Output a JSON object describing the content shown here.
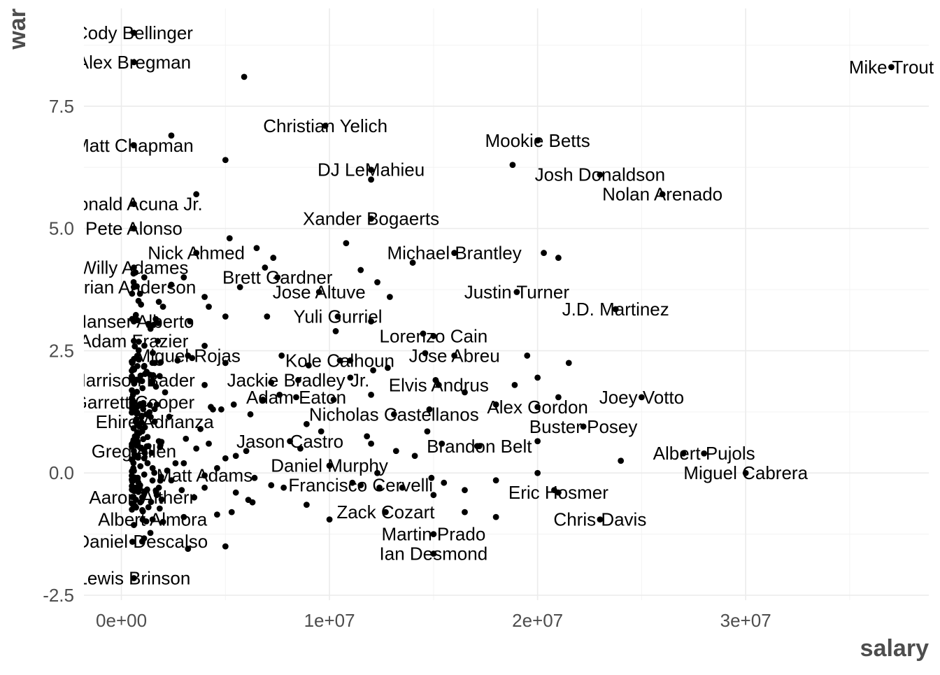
{
  "chart_data": {
    "type": "scatter",
    "xlabel": "salary",
    "ylabel": "war",
    "xlim": [
      -1800000,
      38800000
    ],
    "ylim": [
      -2.6,
      9.5
    ],
    "x_ticks": [
      0,
      10000000,
      20000000,
      30000000
    ],
    "x_tick_labels": [
      "0e+00",
      "1e+07",
      "2e+07",
      "3e+07"
    ],
    "y_ticks": [
      -2.5,
      0,
      2.5,
      5,
      7.5
    ],
    "y_tick_labels": [
      "-2.5",
      "0.0",
      "2.5",
      "5.0",
      "7.5"
    ],
    "grid": true,
    "point_color": "#000000",
    "labeled_points": [
      {
        "label": "Cody Bellinger",
        "x": 600000,
        "y": 9.0
      },
      {
        "label": "Alex Bregman",
        "x": 600000,
        "y": 8.4
      },
      {
        "label": "Mike Trout",
        "x": 37000000,
        "y": 8.3
      },
      {
        "label": "Christian Yelich",
        "x": 9800000,
        "y": 7.1
      },
      {
        "label": "Mookie Betts",
        "x": 20000000,
        "y": 6.8
      },
      {
        "label": "Matt Chapman",
        "x": 600000,
        "y": 6.7
      },
      {
        "label": "DJ LeMahieu",
        "x": 12000000,
        "y": 6.2
      },
      {
        "label": "Josh Donaldson",
        "x": 23000000,
        "y": 6.1
      },
      {
        "label": "Nolan Arenado",
        "x": 26000000,
        "y": 5.7
      },
      {
        "label": "Ronald Acuna Jr.",
        "x": 600000,
        "y": 5.5
      },
      {
        "label": "Xander Bogaerts",
        "x": 12000000,
        "y": 5.2
      },
      {
        "label": "Pete Alonso",
        "x": 600000,
        "y": 5.0
      },
      {
        "label": "Michael Brantley",
        "x": 16000000,
        "y": 4.5
      },
      {
        "label": "Nick Ahmed",
        "x": 3600000,
        "y": 4.5
      },
      {
        "label": "Willy Adames",
        "x": 600000,
        "y": 4.2
      },
      {
        "label": "Brett Gardner",
        "x": 7500000,
        "y": 4.0
      },
      {
        "label": "Brian Anderson",
        "x": 600000,
        "y": 3.8
      },
      {
        "label": "Jose Altuve",
        "x": 9500000,
        "y": 3.7
      },
      {
        "label": "Justin Turner",
        "x": 19000000,
        "y": 3.7
      },
      {
        "label": "J.D. Martinez",
        "x": 23750000,
        "y": 3.35
      },
      {
        "label": "Yuli Gurriel",
        "x": 10400000,
        "y": 3.2
      },
      {
        "label": "Hanser Alberto",
        "x": 600000,
        "y": 3.1
      },
      {
        "label": "Lorenzo Cain",
        "x": 15000000,
        "y": 2.8
      },
      {
        "label": "Adam Frazier",
        "x": 600000,
        "y": 2.7
      },
      {
        "label": "Miguel Rojas",
        "x": 3200000,
        "y": 2.4
      },
      {
        "label": "Jose Abreu",
        "x": 16000000,
        "y": 2.4
      },
      {
        "label": "Kole Calhoun",
        "x": 10500000,
        "y": 2.3
      },
      {
        "label": "Harrison Bader",
        "x": 600000,
        "y": 1.9
      },
      {
        "label": "Jackie Bradley Jr.",
        "x": 8500000,
        "y": 1.9
      },
      {
        "label": "Elvis Andrus",
        "x": 15250000,
        "y": 1.8
      },
      {
        "label": "Joey Votto",
        "x": 25000000,
        "y": 1.55
      },
      {
        "label": "Adam Eaton",
        "x": 8400000,
        "y": 1.55
      },
      {
        "label": "Garrett Cooper",
        "x": 600000,
        "y": 1.45
      },
      {
        "label": "Alex Gordon",
        "x": 20000000,
        "y": 1.35
      },
      {
        "label": "Nicholas Castellanos",
        "x": 13100000,
        "y": 1.2
      },
      {
        "label": "Ehire Adrianza",
        "x": 1600000,
        "y": 1.05
      },
      {
        "label": "Buster Posey",
        "x": 22200000,
        "y": 0.95
      },
      {
        "label": "Jason Castro",
        "x": 8100000,
        "y": 0.65
      },
      {
        "label": "Brandon Belt",
        "x": 17200000,
        "y": 0.55
      },
      {
        "label": "Greg Allen",
        "x": 600000,
        "y": 0.45
      },
      {
        "label": "Albert Pujols",
        "x": 28000000,
        "y": 0.4
      },
      {
        "label": "Daniel Murphy",
        "x": 10000000,
        "y": 0.15
      },
      {
        "label": "Miguel Cabrera",
        "x": 30000000,
        "y": 0.0
      },
      {
        "label": "Matt Adams",
        "x": 4000000,
        "y": -0.05
      },
      {
        "label": "Francisco Cervelli",
        "x": 11500000,
        "y": -0.25
      },
      {
        "label": "Eric Hosmer",
        "x": 21000000,
        "y": -0.4
      },
      {
        "label": "Aaron Altherr",
        "x": 1000000,
        "y": -0.5
      },
      {
        "label": "Zack Cozart",
        "x": 12700000,
        "y": -0.8
      },
      {
        "label": "Albert Almora",
        "x": 1500000,
        "y": -0.95
      },
      {
        "label": "Chris Davis",
        "x": 23000000,
        "y": -0.95
      },
      {
        "label": "Martin Prado",
        "x": 15000000,
        "y": -1.25
      },
      {
        "label": "Daniel Descalso",
        "x": 1000000,
        "y": -1.4
      },
      {
        "label": "Ian Desmond",
        "x": 15000000,
        "y": -1.65
      },
      {
        "label": "Lewis Brinson",
        "x": 600000,
        "y": -2.15
      }
    ],
    "other_points": [
      [
        5900000,
        8.1
      ],
      [
        2400000,
        6.9
      ],
      [
        5000000,
        6.4
      ],
      [
        18800000,
        6.3
      ],
      [
        12000000,
        6.0
      ],
      [
        3600000,
        5.7
      ],
      [
        5200000,
        4.8
      ],
      [
        6500000,
        4.6
      ],
      [
        10800000,
        4.7
      ],
      [
        6900000,
        4.2
      ],
      [
        20300000,
        4.5
      ],
      [
        21000000,
        4.4
      ],
      [
        7300000,
        4.4
      ],
      [
        11500000,
        4.15
      ],
      [
        12300000,
        3.9
      ],
      [
        12900000,
        3.6
      ],
      [
        2400000,
        3.85
      ],
      [
        3000000,
        4.0
      ],
      [
        5700000,
        3.8
      ],
      [
        4200000,
        3.4
      ],
      [
        2000000,
        3.4
      ],
      [
        4000000,
        3.6
      ],
      [
        14000000,
        4.3
      ],
      [
        7000000,
        3.2
      ],
      [
        12000000,
        3.1
      ],
      [
        5000000,
        3.2
      ],
      [
        3300000,
        3.1
      ],
      [
        10300000,
        2.9
      ],
      [
        4000000,
        2.6
      ],
      [
        14500000,
        2.85
      ],
      [
        7700000,
        2.4
      ],
      [
        5000000,
        2.25
      ],
      [
        9000000,
        2.2
      ],
      [
        11000000,
        2.3
      ],
      [
        12100000,
        2.1
      ],
      [
        12800000,
        2.15
      ],
      [
        14600000,
        2.45
      ],
      [
        19500000,
        2.4
      ],
      [
        21500000,
        2.25
      ],
      [
        20000000,
        1.95
      ],
      [
        4000000,
        1.8
      ],
      [
        7200000,
        1.85
      ],
      [
        11000000,
        1.95
      ],
      [
        15100000,
        1.9
      ],
      [
        16500000,
        1.65
      ],
      [
        18900000,
        1.8
      ],
      [
        21000000,
        1.55
      ],
      [
        4400000,
        1.3
      ],
      [
        5400000,
        1.4
      ],
      [
        6800000,
        1.5
      ],
      [
        7600000,
        1.6
      ],
      [
        10200000,
        1.5
      ],
      [
        12000000,
        1.6
      ],
      [
        14800000,
        1.3
      ],
      [
        18000000,
        1.4
      ],
      [
        4800000,
        1.3
      ],
      [
        6200000,
        1.2
      ],
      [
        8900000,
        1.0
      ],
      [
        14700000,
        0.85
      ],
      [
        9600000,
        0.85
      ],
      [
        11800000,
        0.75
      ],
      [
        12000000,
        0.6
      ],
      [
        4200000,
        0.6
      ],
      [
        3100000,
        0.7
      ],
      [
        5500000,
        0.35
      ],
      [
        6000000,
        0.45
      ],
      [
        8600000,
        0.5
      ],
      [
        13200000,
        0.45
      ],
      [
        14100000,
        0.35
      ],
      [
        15400000,
        0.6
      ],
      [
        17100000,
        0.55
      ],
      [
        20000000,
        0.65
      ],
      [
        24000000,
        0.25
      ],
      [
        27000000,
        0.4
      ],
      [
        5000000,
        0.3
      ],
      [
        3000000,
        0.2
      ],
      [
        4600000,
        0.1
      ],
      [
        6400000,
        -0.1
      ],
      [
        10000000,
        0.15
      ],
      [
        12300000,
        0.0
      ],
      [
        20000000,
        0.0
      ],
      [
        7200000,
        -0.25
      ],
      [
        7800000,
        -0.3
      ],
      [
        11100000,
        -0.2
      ],
      [
        13500000,
        -0.3
      ],
      [
        14900000,
        -0.1
      ],
      [
        15500000,
        -0.2
      ],
      [
        16500000,
        -0.35
      ],
      [
        18000000,
        -0.15
      ],
      [
        20800000,
        -0.35
      ],
      [
        4000000,
        -0.3
      ],
      [
        5500000,
        -0.4
      ],
      [
        6300000,
        -0.6
      ],
      [
        6100000,
        -0.55
      ],
      [
        8900000,
        -0.65
      ],
      [
        10000000,
        -0.95
      ],
      [
        12400000,
        -0.3
      ],
      [
        15000000,
        -0.45
      ],
      [
        16500000,
        -0.8
      ],
      [
        18000000,
        -0.9
      ],
      [
        4600000,
        -0.85
      ],
      [
        5300000,
        -0.8
      ],
      [
        3000000,
        -0.9
      ],
      [
        3200000,
        -1.55
      ],
      [
        5000000,
        -1.5
      ],
      [
        2000000,
        -1.0
      ],
      [
        1800000,
        -0.3
      ],
      [
        2200000,
        0.05
      ],
      [
        2600000,
        0.2
      ],
      [
        3600000,
        0.5
      ],
      [
        3800000,
        0.9
      ],
      [
        4300000,
        1.35
      ],
      [
        2300000,
        1.15
      ],
      [
        2100000,
        1.65
      ],
      [
        1500000,
        1.9
      ],
      [
        1600000,
        2.25
      ],
      [
        1400000,
        2.95
      ],
      [
        1800000,
        3.5
      ],
      [
        1100000,
        4.0
      ],
      [
        1300000,
        3.05
      ],
      [
        2700000,
        2.3
      ],
      [
        3400000,
        2.35
      ],
      [
        1700000,
        1.4
      ],
      [
        1200000,
        1.2
      ],
      [
        1000000,
        0.85
      ],
      [
        1300000,
        0.55
      ],
      [
        1800000,
        0.65
      ],
      [
        1100000,
        0.3
      ],
      [
        1500000,
        0.1
      ],
      [
        2400000,
        -0.15
      ],
      [
        2900000,
        -0.35
      ],
      [
        3500000,
        -0.5
      ],
      [
        1300000,
        -0.7
      ],
      [
        1700000,
        -0.45
      ],
      [
        900000,
        -0.25
      ]
    ],
    "cluster_band": {
      "x_min": 500000,
      "x_max": 2000000,
      "y_min": -1.5,
      "y_max": 5.7
    }
  }
}
